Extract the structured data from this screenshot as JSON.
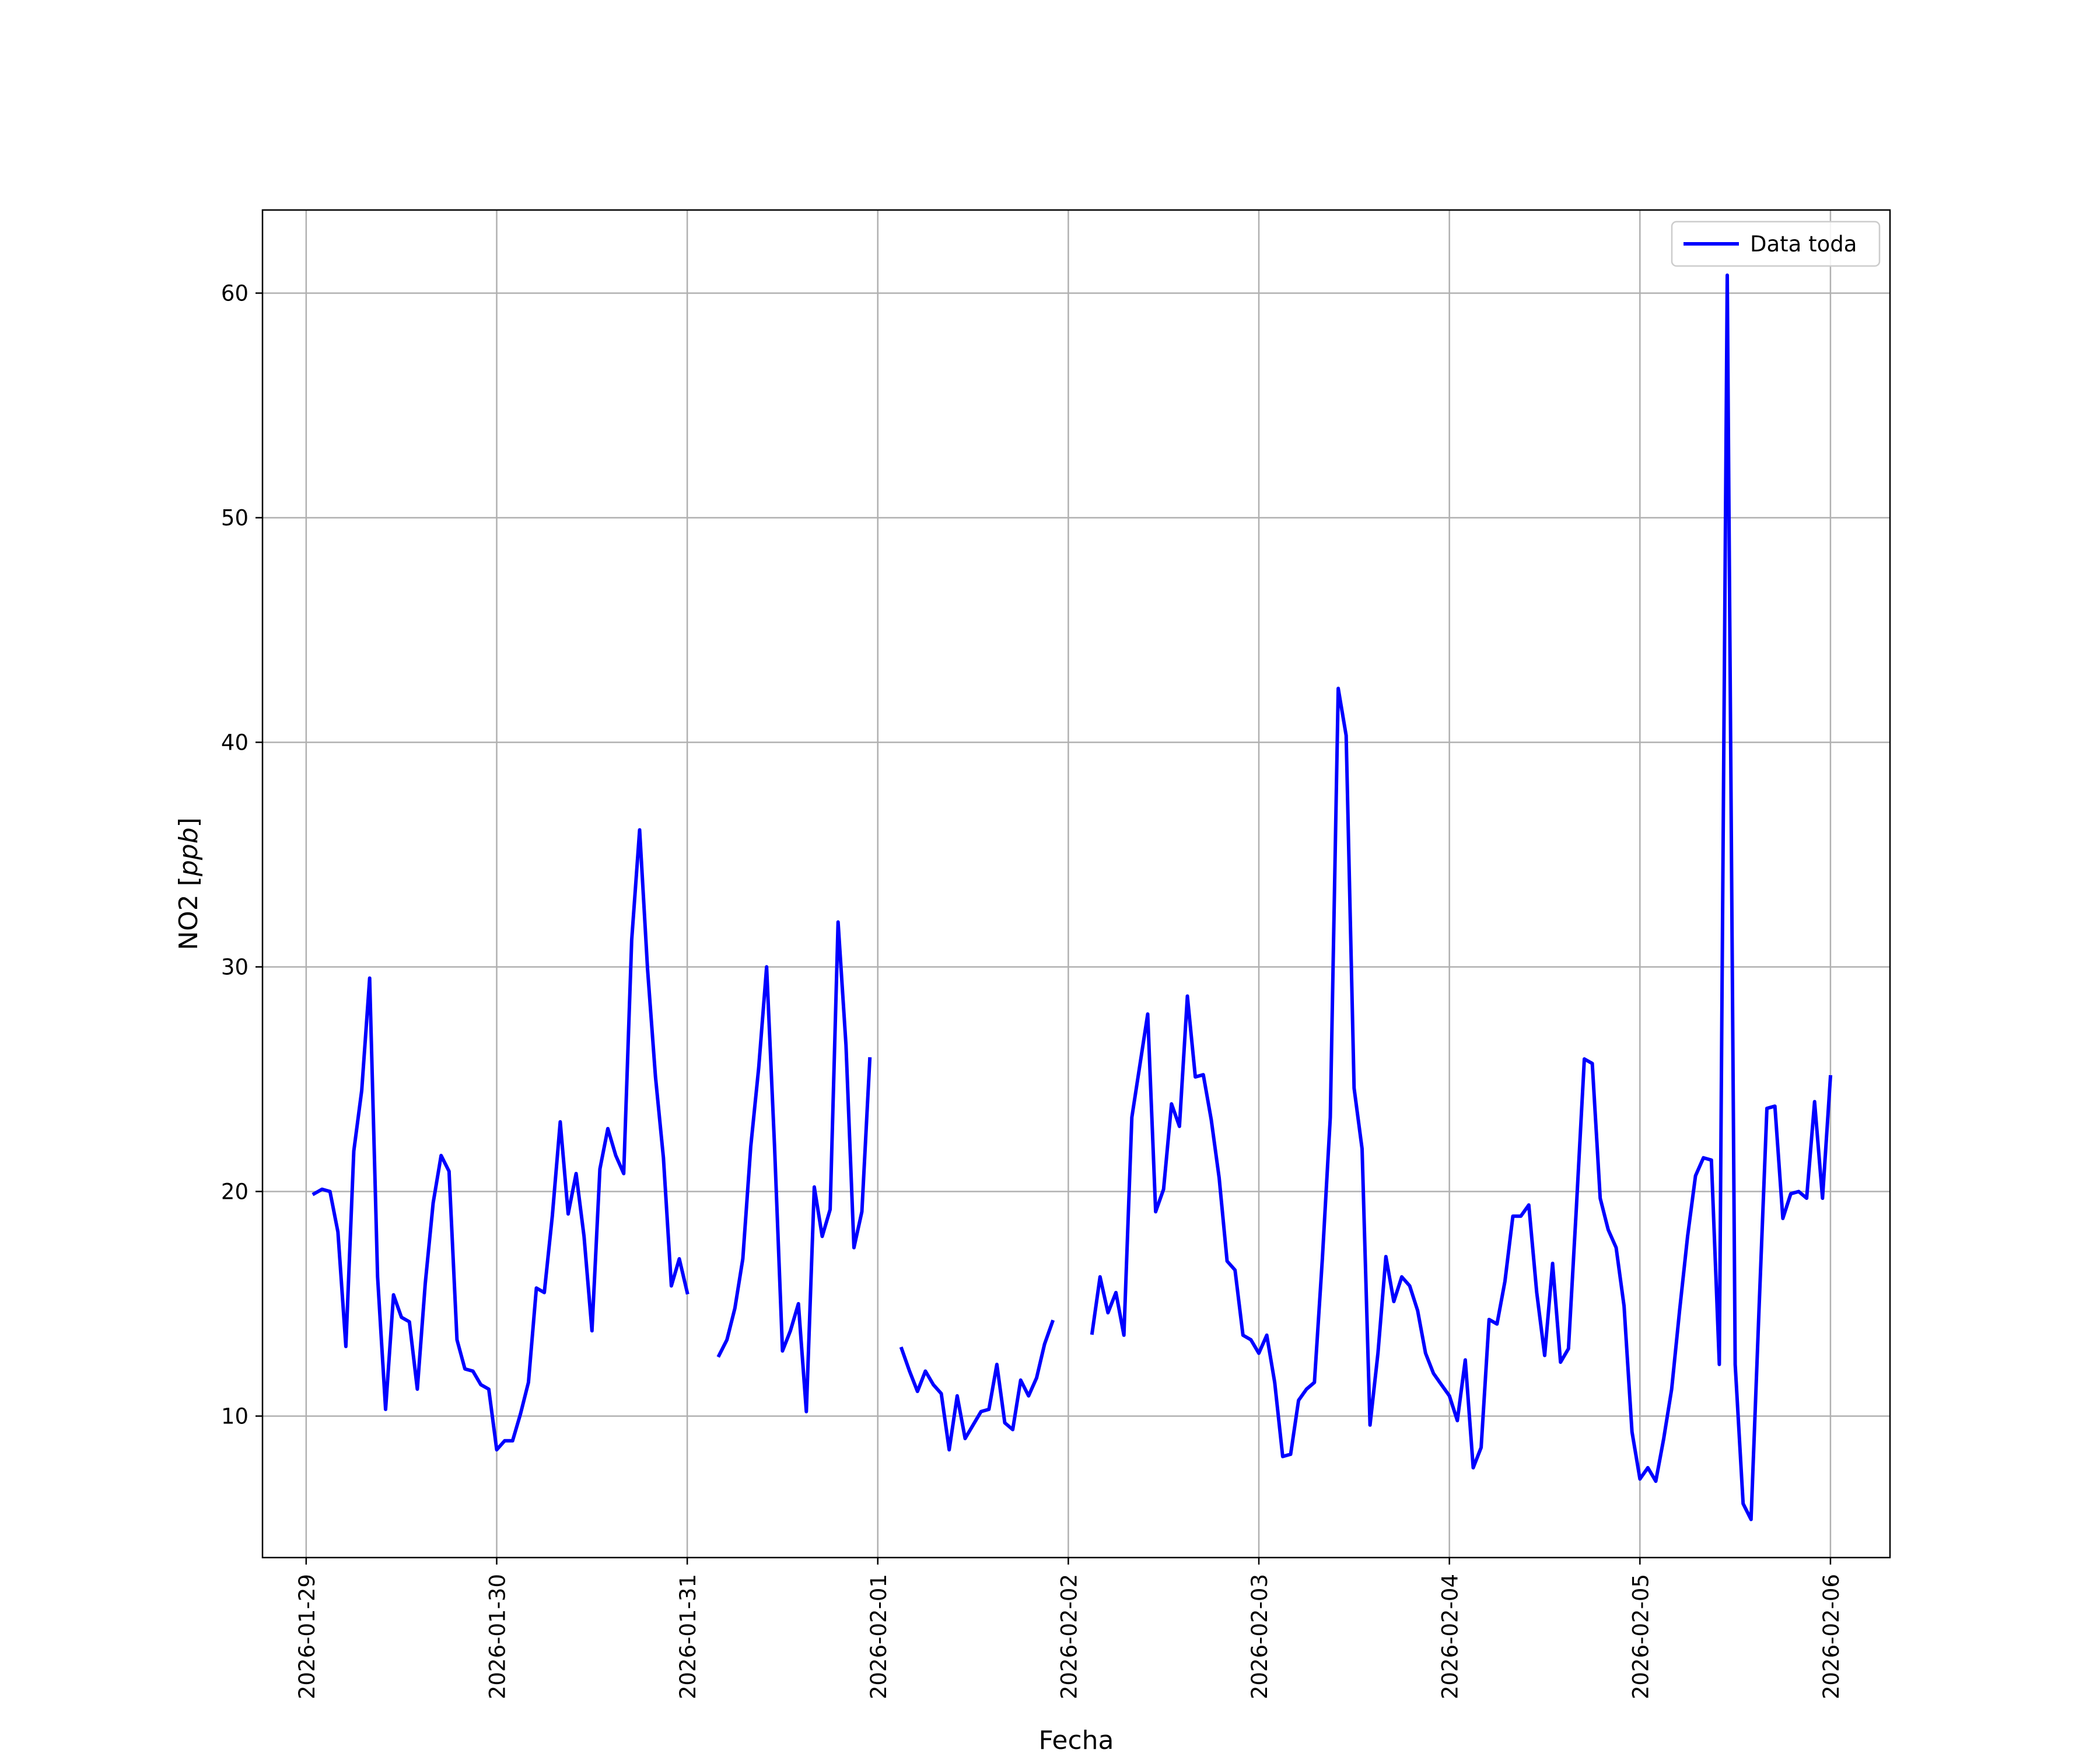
{
  "chart_data": {
    "type": "line",
    "xlabel": "Fecha",
    "ylabel": "NO2 [ppb]",
    "ylabel_parts": {
      "prefix": "NO2 [",
      "unit": "ppb",
      "suffix": "]"
    },
    "xlim": [
      "2026-01-28T18:30",
      "2026-02-06T07:30"
    ],
    "ylim": [
      3.7,
      63.7
    ],
    "x_ticks": [
      "2026-01-29",
      "2026-01-30",
      "2026-01-31",
      "2026-02-01",
      "2026-02-02",
      "2026-02-03",
      "2026-02-04",
      "2026-02-05",
      "2026-02-06"
    ],
    "y_ticks": [
      10,
      20,
      30,
      40,
      50,
      60
    ],
    "grid": true,
    "legend": {
      "position": "top-right",
      "entries": [
        "Data toda"
      ]
    },
    "series": [
      {
        "name": "Data toda",
        "color": "#0000ff",
        "segments": [
          [
            [
              "2026-01-29T01:00",
              19.9
            ],
            [
              "2026-01-29T02:00",
              20.1
            ],
            [
              "2026-01-29T03:00",
              20.0
            ],
            [
              "2026-01-29T04:00",
              18.2
            ],
            [
              "2026-01-29T05:00",
              13.1
            ],
            [
              "2026-01-29T06:00",
              21.8
            ],
            [
              "2026-01-29T07:00",
              24.5
            ],
            [
              "2026-01-29T08:00",
              29.5
            ],
            [
              "2026-01-29T09:00",
              16.2
            ],
            [
              "2026-01-29T10:00",
              10.3
            ],
            [
              "2026-01-29T11:00",
              15.4
            ],
            [
              "2026-01-29T12:00",
              14.4
            ],
            [
              "2026-01-29T13:00",
              14.2
            ],
            [
              "2026-01-29T14:00",
              11.2
            ],
            [
              "2026-01-29T15:00",
              15.9
            ],
            [
              "2026-01-29T16:00",
              19.5
            ],
            [
              "2026-01-29T17:00",
              21.6
            ],
            [
              "2026-01-29T18:00",
              20.9
            ],
            [
              "2026-01-29T19:00",
              13.4
            ],
            [
              "2026-01-29T20:00",
              12.1
            ],
            [
              "2026-01-29T21:00",
              12.0
            ],
            [
              "2026-01-29T22:00",
              11.4
            ],
            [
              "2026-01-29T23:00",
              11.2
            ],
            [
              "2026-01-30T00:00",
              8.5
            ],
            [
              "2026-01-30T01:00",
              8.9
            ],
            [
              "2026-01-30T02:00",
              8.9
            ],
            [
              "2026-01-30T03:00",
              10.1
            ],
            [
              "2026-01-30T04:00",
              11.5
            ],
            [
              "2026-01-30T05:00",
              15.7
            ],
            [
              "2026-01-30T06:00",
              15.5
            ],
            [
              "2026-01-30T07:00",
              18.9
            ],
            [
              "2026-01-30T08:00",
              23.1
            ],
            [
              "2026-01-30T09:00",
              19.0
            ],
            [
              "2026-01-30T10:00",
              20.8
            ],
            [
              "2026-01-30T11:00",
              18.0
            ],
            [
              "2026-01-30T12:00",
              13.8
            ],
            [
              "2026-01-30T13:00",
              21.0
            ],
            [
              "2026-01-30T14:00",
              22.8
            ],
            [
              "2026-01-30T15:00",
              21.6
            ],
            [
              "2026-01-30T16:00",
              20.8
            ],
            [
              "2026-01-30T17:00",
              31.2
            ],
            [
              "2026-01-30T18:00",
              36.1
            ],
            [
              "2026-01-30T19:00",
              29.9
            ],
            [
              "2026-01-30T20:00",
              25.1
            ],
            [
              "2026-01-30T21:00",
              21.5
            ],
            [
              "2026-01-30T22:00",
              15.8
            ],
            [
              "2026-01-30T23:00",
              17.0
            ],
            [
              "2026-01-31T00:00",
              15.5
            ]
          ],
          [
            [
              "2026-01-31T04:00",
              12.7
            ],
            [
              "2026-01-31T05:00",
              13.4
            ],
            [
              "2026-01-31T06:00",
              14.8
            ],
            [
              "2026-01-31T07:00",
              17.0
            ],
            [
              "2026-01-31T08:00",
              22.0
            ],
            [
              "2026-01-31T09:00",
              25.5
            ],
            [
              "2026-01-31T10:00",
              30.0
            ],
            [
              "2026-01-31T11:00",
              22.0
            ],
            [
              "2026-01-31T12:00",
              12.9
            ],
            [
              "2026-01-31T13:00",
              13.8
            ],
            [
              "2026-01-31T14:00",
              15.0
            ],
            [
              "2026-01-31T15:00",
              10.2
            ],
            [
              "2026-01-31T16:00",
              20.2
            ],
            [
              "2026-01-31T17:00",
              18.0
            ],
            [
              "2026-01-31T18:00",
              19.2
            ],
            [
              "2026-01-31T19:00",
              32.0
            ],
            [
              "2026-01-31T20:00",
              26.5
            ],
            [
              "2026-01-31T21:00",
              17.5
            ],
            [
              "2026-01-31T22:00",
              19.1
            ],
            [
              "2026-01-31T23:00",
              25.9
            ]
          ],
          [
            [
              "2026-02-01T03:00",
              13.0
            ],
            [
              "2026-02-01T04:00",
              12.0
            ],
            [
              "2026-02-01T05:00",
              11.1
            ],
            [
              "2026-02-01T06:00",
              12.0
            ],
            [
              "2026-02-01T07:00",
              11.4
            ],
            [
              "2026-02-01T08:00",
              11.0
            ],
            [
              "2026-02-01T09:00",
              8.5
            ],
            [
              "2026-02-01T10:00",
              10.9
            ],
            [
              "2026-02-01T11:00",
              9.0
            ],
            [
              "2026-02-01T12:00",
              9.6
            ],
            [
              "2026-02-01T13:00",
              10.2
            ],
            [
              "2026-02-01T14:00",
              10.3
            ],
            [
              "2026-02-01T15:00",
              12.3
            ],
            [
              "2026-02-01T16:00",
              9.7
            ],
            [
              "2026-02-01T17:00",
              9.4
            ],
            [
              "2026-02-01T18:00",
              11.6
            ],
            [
              "2026-02-01T19:00",
              10.9
            ],
            [
              "2026-02-01T20:00",
              11.7
            ],
            [
              "2026-02-01T21:00",
              13.2
            ],
            [
              "2026-02-01T22:00",
              14.2
            ]
          ],
          [
            [
              "2026-02-02T03:00",
              13.7
            ],
            [
              "2026-02-02T04:00",
              16.2
            ],
            [
              "2026-02-02T05:00",
              14.6
            ],
            [
              "2026-02-02T06:00",
              15.5
            ],
            [
              "2026-02-02T07:00",
              13.6
            ],
            [
              "2026-02-02T08:00",
              23.3
            ],
            [
              "2026-02-02T09:00",
              25.6
            ],
            [
              "2026-02-02T10:00",
              27.9
            ],
            [
              "2026-02-02T11:00",
              19.1
            ],
            [
              "2026-02-02T12:00",
              20.1
            ],
            [
              "2026-02-02T13:00",
              23.9
            ],
            [
              "2026-02-02T14:00",
              22.9
            ],
            [
              "2026-02-02T15:00",
              28.7
            ],
            [
              "2026-02-02T16:00",
              25.1
            ],
            [
              "2026-02-02T17:00",
              25.2
            ],
            [
              "2026-02-02T18:00",
              23.2
            ],
            [
              "2026-02-02T19:00",
              20.6
            ],
            [
              "2026-02-02T20:00",
              16.9
            ],
            [
              "2026-02-02T21:00",
              16.5
            ],
            [
              "2026-02-02T22:00",
              13.6
            ],
            [
              "2026-02-02T23:00",
              13.4
            ],
            [
              "2026-02-03T00:00",
              12.8
            ],
            [
              "2026-02-03T01:00",
              13.6
            ],
            [
              "2026-02-03T02:00",
              11.5
            ],
            [
              "2026-02-03T03:00",
              8.2
            ],
            [
              "2026-02-03T04:00",
              8.3
            ],
            [
              "2026-02-03T05:00",
              10.7
            ],
            [
              "2026-02-03T06:00",
              11.2
            ],
            [
              "2026-02-03T07:00",
              11.5
            ],
            [
              "2026-02-03T08:00",
              17.0
            ],
            [
              "2026-02-03T09:00",
              23.3
            ],
            [
              "2026-02-03T10:00",
              42.4
            ],
            [
              "2026-02-03T11:00",
              40.3
            ],
            [
              "2026-02-03T12:00",
              24.6
            ],
            [
              "2026-02-03T13:00",
              21.9
            ],
            [
              "2026-02-03T14:00",
              9.6
            ],
            [
              "2026-02-03T15:00",
              12.8
            ],
            [
              "2026-02-03T16:00",
              17.1
            ],
            [
              "2026-02-03T17:00",
              15.1
            ],
            [
              "2026-02-03T18:00",
              16.2
            ],
            [
              "2026-02-03T19:00",
              15.8
            ],
            [
              "2026-02-03T20:00",
              14.7
            ],
            [
              "2026-02-03T21:00",
              12.8
            ],
            [
              "2026-02-03T22:00",
              11.9
            ],
            [
              "2026-02-03T23:00",
              11.4
            ],
            [
              "2026-02-04T00:00",
              10.9
            ],
            [
              "2026-02-04T01:00",
              9.8
            ],
            [
              "2026-02-04T02:00",
              12.5
            ],
            [
              "2026-02-04T03:00",
              7.7
            ],
            [
              "2026-02-04T04:00",
              8.6
            ],
            [
              "2026-02-04T05:00",
              14.3
            ],
            [
              "2026-02-04T06:00",
              14.1
            ],
            [
              "2026-02-04T07:00",
              16.0
            ],
            [
              "2026-02-04T08:00",
              18.9
            ],
            [
              "2026-02-04T09:00",
              18.9
            ],
            [
              "2026-02-04T10:00",
              19.4
            ],
            [
              "2026-02-04T11:00",
              15.5
            ],
            [
              "2026-02-04T12:00",
              12.7
            ],
            [
              "2026-02-04T13:00",
              16.8
            ],
            [
              "2026-02-04T14:00",
              12.4
            ],
            [
              "2026-02-04T15:00",
              13.0
            ],
            [
              "2026-02-04T16:00",
              19.3
            ],
            [
              "2026-02-04T17:00",
              25.9
            ],
            [
              "2026-02-04T18:00",
              25.7
            ],
            [
              "2026-02-04T19:00",
              19.7
            ],
            [
              "2026-02-04T20:00",
              18.3
            ],
            [
              "2026-02-04T21:00",
              17.5
            ],
            [
              "2026-02-04T22:00",
              14.9
            ],
            [
              "2026-02-04T23:00",
              9.3
            ],
            [
              "2026-02-05T00:00",
              7.2
            ],
            [
              "2026-02-05T01:00",
              7.7
            ],
            [
              "2026-02-05T02:00",
              7.1
            ],
            [
              "2026-02-05T03:00",
              9.0
            ],
            [
              "2026-02-05T04:00",
              11.2
            ],
            [
              "2026-02-05T05:00",
              14.7
            ],
            [
              "2026-02-05T06:00",
              18.0
            ],
            [
              "2026-02-05T07:00",
              20.7
            ],
            [
              "2026-02-05T08:00",
              21.5
            ],
            [
              "2026-02-05T09:00",
              21.4
            ],
            [
              "2026-02-05T10:00",
              12.3
            ],
            [
              "2026-02-05T11:00",
              60.8
            ],
            [
              "2026-02-05T12:00",
              12.3
            ],
            [
              "2026-02-05T13:00",
              6.1
            ],
            [
              "2026-02-05T14:00",
              5.4
            ],
            [
              "2026-02-05T15:00",
              14.7
            ],
            [
              "2026-02-05T16:00",
              23.7
            ],
            [
              "2026-02-05T17:00",
              23.8
            ],
            [
              "2026-02-05T18:00",
              18.8
            ],
            [
              "2026-02-05T19:00",
              19.9
            ],
            [
              "2026-02-05T20:00",
              20.0
            ],
            [
              "2026-02-05T21:00",
              19.7
            ],
            [
              "2026-02-05T22:00",
              24.0
            ],
            [
              "2026-02-05T23:00",
              19.7
            ],
            [
              "2026-02-06T00:00",
              25.1
            ]
          ]
        ]
      }
    ]
  }
}
